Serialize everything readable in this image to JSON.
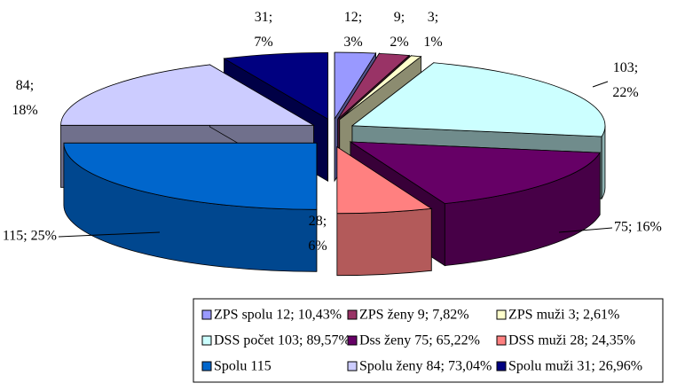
{
  "chart_data": {
    "type": "pie3d",
    "categories": [
      "ZPS spolu 12; 10,43%",
      "ZPS ženy 9; 7,82%",
      "ZPS muži 3; 2,61%",
      "DSS počet 103; 89,57%",
      "Dss ženy 75; 65,22%",
      "DSS muži 28; 24,35%",
      "Spolu 115",
      "Spolu ženy 84; 73,04%",
      "Spolu muži 31; 26,96%"
    ],
    "values": [
      12,
      9,
      3,
      103,
      75,
      28,
      115,
      84,
      31
    ],
    "value_labels": [
      "12; 3%",
      "9; 2%",
      "3; 1%",
      "103; 22%",
      "75; 16%",
      "28; 6%",
      "115; 25%",
      "84; 18%",
      "31; 7%"
    ],
    "colors": [
      "#9999ff",
      "#993366",
      "#ffffcc",
      "#ccffff",
      "#660066",
      "#ff8080",
      "#0066cc",
      "#ccccff",
      "#000080"
    ],
    "legend": "bottom"
  }
}
